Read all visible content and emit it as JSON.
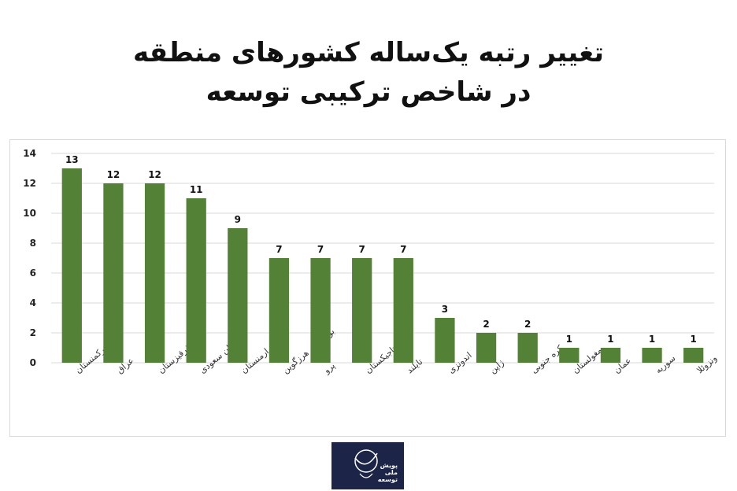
{
  "chart_data": {
    "type": "bar",
    "title": "تغییر رتبه یک‌ساله کشورهای منطقه",
    "subtitle": "در شاخص ترکیبی توسعه",
    "categories": [
      "ترکمنستان",
      "عراق",
      "قرقیزستان",
      "عربستان سعودی",
      "ارمنستان",
      "بوسنی و هرزگوین",
      "پرو",
      "تاجیکستان",
      "تایلند",
      "اندونزی",
      "ژاپن",
      "کره جنوبی",
      "مغولستان",
      "عمان",
      "سوریه",
      "ونزوئلا"
    ],
    "values": [
      13,
      12,
      12,
      11,
      9,
      7,
      7,
      7,
      7,
      3,
      2,
      2,
      1,
      1,
      1,
      1
    ],
    "ylim": [
      0,
      14
    ],
    "yticks": [
      0,
      2,
      4,
      6,
      8,
      10,
      12,
      14
    ],
    "grid": true,
    "bar_color": "#538135",
    "grid_color": "#d9d9d9"
  },
  "logo": {
    "text_line_1": "پویش",
    "text_line_2": "ملی",
    "text_line_3": "توسعه",
    "background": "#1c2547"
  }
}
